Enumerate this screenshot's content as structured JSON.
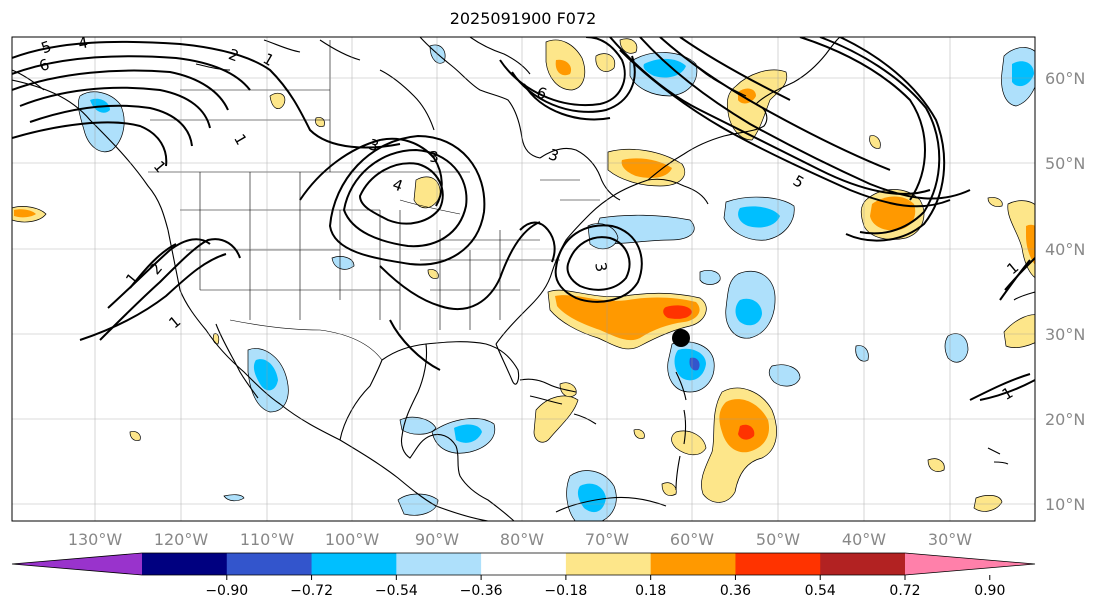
{
  "title": "2025091900 F072",
  "lon_labels": [
    "130°W",
    "120°W",
    "110°W",
    "100°W",
    "90°W",
    "80°W",
    "70°W",
    "60°W",
    "50°W",
    "40°W",
    "30°W"
  ],
  "lat_labels": [
    "60°N",
    "50°N",
    "40°N",
    "30°N",
    "20°N",
    "10°N"
  ],
  "colorbar": {
    "tick_labels": [
      "−0.90",
      "−0.72",
      "−0.54",
      "−0.36",
      "−0.18",
      "0.18",
      "0.36",
      "0.54",
      "0.72",
      "0.90"
    ],
    "colors": [
      "#9933cc",
      "#000080",
      "#3355cc",
      "#00bfff",
      "#aee0fb",
      "#ffffff",
      "#fde68a",
      "#ff9900",
      "#ff3300",
      "#b22222",
      "#ff80aa"
    ]
  },
  "contour_labels": [
    "5",
    "4",
    "6",
    "1",
    "2",
    "3",
    "3",
    "4",
    "3",
    "3",
    "6",
    "5",
    "1",
    "1",
    "2",
    "1",
    "1",
    "1",
    "1"
  ],
  "marker": "storm-center-dot"
}
